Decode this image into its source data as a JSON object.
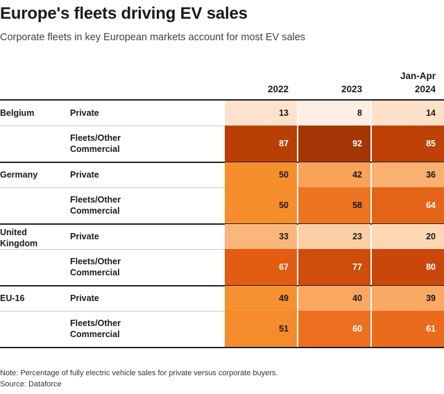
{
  "title": "Europe's fleets driving EV sales",
  "subtitle": "Corporate fleets in key European markets account for most EV sales",
  "note": "Note: Percentage of fully electric vehicle sales for private versus corporate buyers.",
  "source": "Source: Dataforce",
  "chart_data": {
    "type": "table",
    "columns": [
      {
        "line1": "",
        "line2": "2022"
      },
      {
        "line1": "",
        "line2": "2023"
      },
      {
        "line1": "Jan-Apr",
        "line2": "2024"
      }
    ],
    "groups": [
      {
        "country": [
          "Belgium"
        ],
        "rows": [
          {
            "buyer": [
              "Private"
            ],
            "values": [
              13,
              8,
              14
            ]
          },
          {
            "buyer": [
              "Fleets/Other",
              "Commercial"
            ],
            "values": [
              87,
              92,
              85
            ]
          }
        ]
      },
      {
        "country": [
          "Germany"
        ],
        "rows": [
          {
            "buyer": [
              "Private"
            ],
            "values": [
              50,
              42,
              36
            ]
          },
          {
            "buyer": [
              "Fleets/Other",
              "Commercial"
            ],
            "values": [
              50,
              58,
              64
            ]
          }
        ]
      },
      {
        "country": [
          "United",
          "Kingdom"
        ],
        "rows": [
          {
            "buyer": [
              "Private"
            ],
            "values": [
              33,
              23,
              20
            ]
          },
          {
            "buyer": [
              "Fleets/Other",
              "Commercial"
            ],
            "values": [
              67,
              77,
              80
            ]
          }
        ]
      },
      {
        "country": [
          "EU-16"
        ],
        "rows": [
          {
            "buyer": [
              "Private"
            ],
            "values": [
              49,
              40,
              39
            ]
          },
          {
            "buyer": [
              "Fleets/Other",
              "Commercial"
            ],
            "values": [
              51,
              60,
              61
            ]
          }
        ]
      }
    ],
    "color_scale": {
      "stops": [
        {
          "value": 8,
          "color": "#fdeee3"
        },
        {
          "value": 14,
          "color": "#fde1c8"
        },
        {
          "value": 20,
          "color": "#fdd6b3"
        },
        {
          "value": 33,
          "color": "#fbb77b"
        },
        {
          "value": 42,
          "color": "#f9a25a"
        },
        {
          "value": 50,
          "color": "#f68e2c"
        },
        {
          "value": 58,
          "color": "#ed7421"
        },
        {
          "value": 67,
          "color": "#e25c12"
        },
        {
          "value": 80,
          "color": "#c9470b"
        },
        {
          "value": 87,
          "color": "#b93f06"
        },
        {
          "value": 92,
          "color": "#a43504"
        }
      ]
    }
  }
}
